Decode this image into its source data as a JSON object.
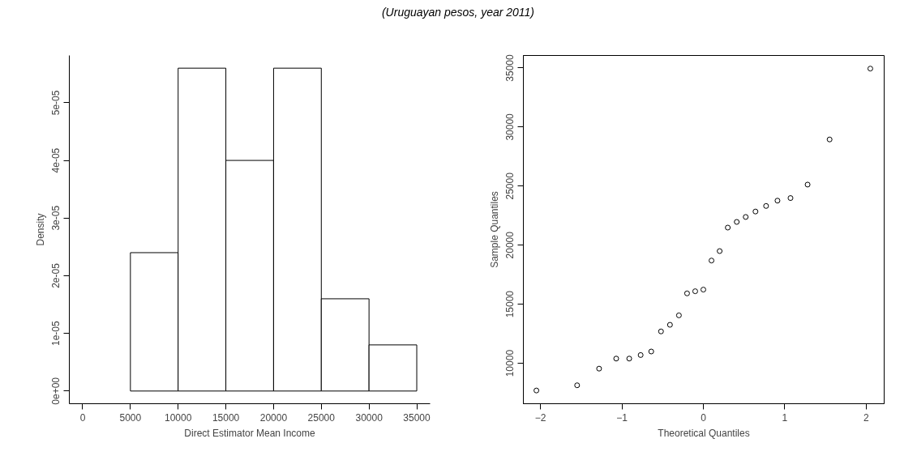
{
  "chart_data": [
    {
      "type": "histogram",
      "title": "(Uruguayan pesos, year 2011)",
      "xlabel": "Direct Estimator Mean Income",
      "ylabel": "Density",
      "bins": [
        5000,
        10000,
        15000,
        20000,
        25000,
        30000,
        35000
      ],
      "values": [
        2.4e-05,
        5.6e-05,
        4e-05,
        5.6e-05,
        1.6e-05,
        8e-06
      ],
      "color": "#ffffff",
      "xlim": [
        -1400,
        36400
      ],
      "ylim": [
        -2.2e-06,
        5.82e-05
      ],
      "xticks": [
        0,
        5000,
        10000,
        15000,
        20000,
        25000,
        30000,
        35000
      ],
      "yticks": [
        {
          "value": 0,
          "label": "0e+00"
        },
        {
          "value": 1e-05,
          "label": "1e-05"
        },
        {
          "value": 2e-05,
          "label": "2e-05"
        },
        {
          "value": 3e-05,
          "label": "3e-05"
        },
        {
          "value": 4e-05,
          "label": "4e-05"
        },
        {
          "value": 5e-05,
          "label": "5e-05"
        }
      ],
      "grid": false
    },
    {
      "type": "scatter",
      "xlabel": "Theoretical Quantiles",
      "ylabel": "Sample Quantiles",
      "marker": "circle",
      "color": "#000000",
      "x": [
        -2.05,
        -1.55,
        -1.28,
        -1.07,
        -0.91,
        -0.77,
        -0.64,
        -0.52,
        -0.41,
        -0.3,
        -0.2,
        -0.1,
        0,
        0.1,
        0.2,
        0.3,
        0.41,
        0.52,
        0.64,
        0.77,
        0.91,
        1.07,
        1.28,
        1.55,
        2.05
      ],
      "values": [
        7700,
        8140,
        9550,
        10400,
        10400,
        10700,
        11000,
        12700,
        13260,
        14060,
        15920,
        16100,
        16240,
        18700,
        19500,
        21490,
        21970,
        22390,
        22850,
        23320,
        23770,
        23990,
        25130,
        28950,
        34950
      ],
      "xlim": [
        -2.21,
        2.22
      ],
      "ylim": [
        6580,
        36060
      ],
      "xticks": [
        -2,
        -1,
        0,
        1,
        2
      ],
      "yticks": [
        10000,
        15000,
        20000,
        25000,
        30000,
        35000
      ],
      "grid": false
    }
  ]
}
